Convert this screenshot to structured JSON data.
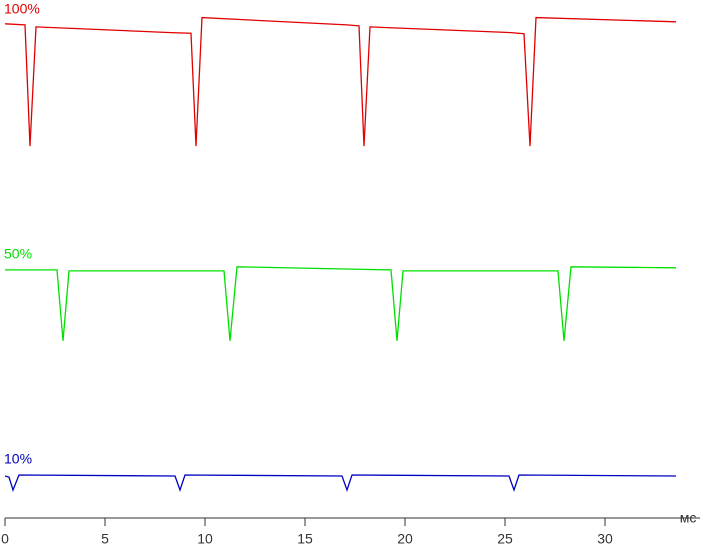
{
  "chart_data": {
    "type": "line",
    "x_label": "мс",
    "xlim": [
      0,
      34.75
    ],
    "xticks": [
      0,
      5,
      10,
      15,
      20,
      25,
      30
    ],
    "ylim": [
      0,
      100
    ],
    "series": [
      {
        "name": "100%",
        "color": "#e00000",
        "x": [
          0,
          1.0,
          1.25,
          1.55,
          8.3,
          9.3,
          9.55,
          9.85,
          17.1,
          17.7,
          17.95,
          18.25,
          25.3,
          25.95,
          26.25,
          26.55,
          33.55
        ],
        "values": [
          95.4,
          95.2,
          71.8,
          94.8,
          93.7,
          93.6,
          71.8,
          96.6,
          95.2,
          95.0,
          71.8,
          94.8,
          93.7,
          93.5,
          71.8,
          96.6,
          95.8
        ]
      },
      {
        "name": "50%",
        "color": "#00e000",
        "x": [
          0,
          2.6,
          2.9,
          3.2,
          10.95,
          11.25,
          11.6,
          19.3,
          19.6,
          19.9,
          27.65,
          27.95,
          28.3,
          33.55
        ],
        "values": [
          47.9,
          47.9,
          34.2,
          47.7,
          47.7,
          34.2,
          48.5,
          47.9,
          34.2,
          47.7,
          47.7,
          34.2,
          48.5,
          48.3
        ]
      },
      {
        "name": "10%",
        "color": "#0000c0",
        "x": [
          0,
          0.2,
          0.4,
          0.7,
          8.5,
          8.75,
          9.0,
          16.85,
          17.1,
          17.35,
          25.2,
          25.45,
          25.7,
          33.55
        ],
        "values": [
          8.1,
          7.9,
          5.4,
          8.3,
          8.1,
          5.4,
          8.3,
          8.1,
          5.4,
          8.3,
          8.1,
          5.4,
          8.3,
          8.1
        ]
      }
    ]
  }
}
